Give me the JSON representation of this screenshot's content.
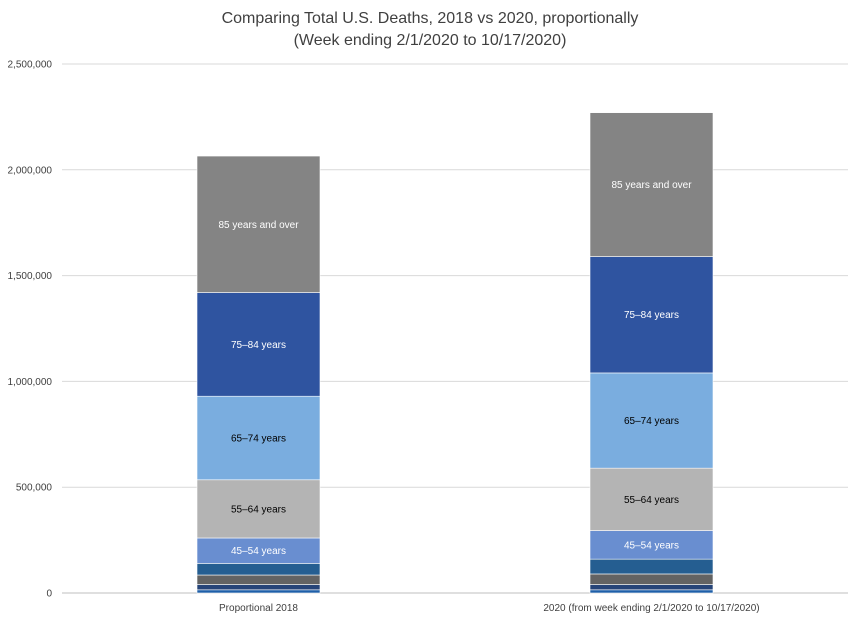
{
  "chart_data": {
    "type": "bar",
    "stacked": true,
    "title": "Comparing Total U.S. Deaths, 2018 vs 2020, proportionally",
    "subtitle": "(Week ending 2/1/2020 to 10/17/2020)",
    "xlabel": "",
    "ylabel": "",
    "ylim": [
      0,
      2500000
    ],
    "yticks": [
      0,
      500000,
      1000000,
      1500000,
      2000000,
      2500000
    ],
    "ytick_labels": [
      "0",
      "500,000",
      "1,000,000",
      "1,500,000",
      "2,000,000",
      "2,500,000"
    ],
    "grid": true,
    "legend": "none",
    "categories": [
      "Proportional 2018",
      "2020 (from week ending 2/1/2020 to 10/17/2020)"
    ],
    "series": [
      {
        "name": "",
        "color": "#1f5fa8",
        "values": [
          15000,
          15000
        ],
        "labeled": false
      },
      {
        "name": "",
        "color": "#264478",
        "values": [
          25000,
          25000
        ],
        "labeled": false
      },
      {
        "name": "",
        "color": "#636363",
        "values": [
          45000,
          50000
        ],
        "labeled": false
      },
      {
        "name": "",
        "color": "#255e91",
        "values": [
          55000,
          70000
        ],
        "labeled": false
      },
      {
        "name": "45–54 years",
        "color": "#698ed0",
        "values": [
          120000,
          135000
        ],
        "labeled": true,
        "label_color": "#ffffff"
      },
      {
        "name": "55–64 years",
        "color": "#b4b4b4",
        "values": [
          275000,
          295000
        ],
        "labeled": true,
        "label_color": "#000000"
      },
      {
        "name": "65–74 years",
        "color": "#7aaddf",
        "values": [
          395000,
          450000
        ],
        "labeled": true,
        "label_color": "#000000"
      },
      {
        "name": "75–84 years",
        "color": "#2f54a0",
        "values": [
          490000,
          550000
        ],
        "labeled": true,
        "label_color": "#ffffff"
      },
      {
        "name": "85 years and over",
        "color": "#848484",
        "values": [
          645000,
          680000
        ],
        "labeled": true,
        "label_color": "#ffffff"
      }
    ]
  }
}
